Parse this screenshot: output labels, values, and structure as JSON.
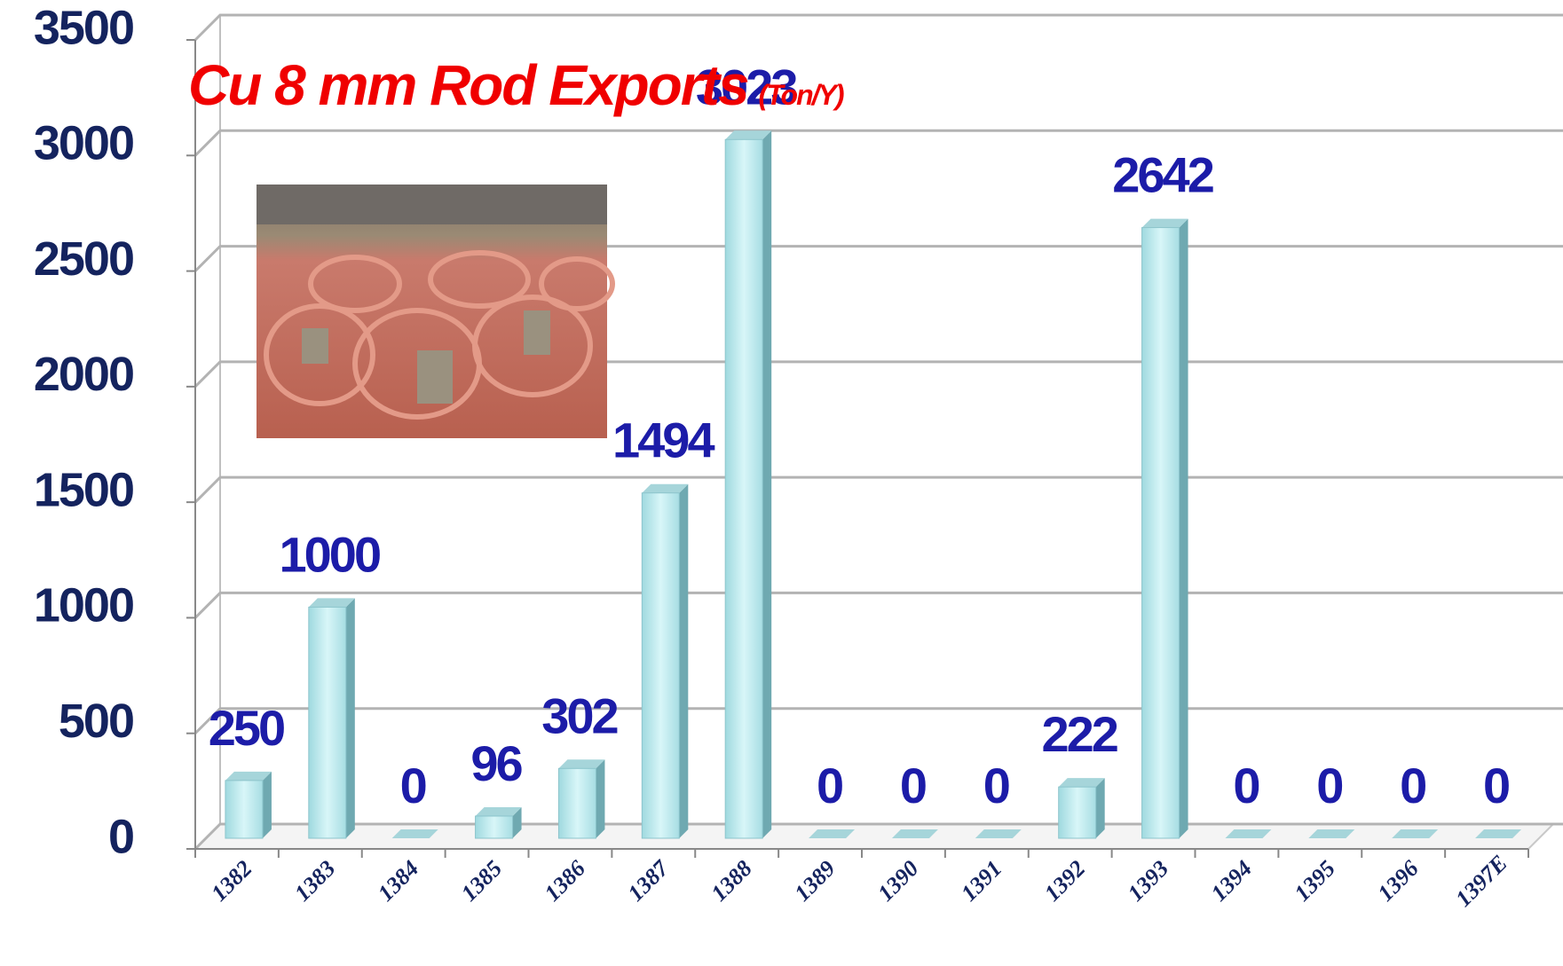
{
  "chart_data": {
    "type": "bar3d",
    "title": "Cu 8 mm Rod Exports",
    "subtitle": "(Ton/Y)",
    "categories": [
      "1382",
      "1383",
      "1384",
      "1385",
      "1386",
      "1387",
      "1388",
      "1389",
      "1390",
      "1391",
      "1392",
      "1393",
      "1394",
      "1395",
      "1396",
      "1397E"
    ],
    "values": [
      250,
      1000,
      0,
      96,
      302,
      1494,
      3023,
      0,
      0,
      0,
      222,
      2642,
      0,
      0,
      0,
      0
    ],
    "color": "#b9ebf0",
    "ylim": [
      0,
      3500
    ],
    "yticks": [
      0,
      500,
      1000,
      1500,
      2000,
      2500,
      3000,
      3500
    ],
    "grid": true
  }
}
